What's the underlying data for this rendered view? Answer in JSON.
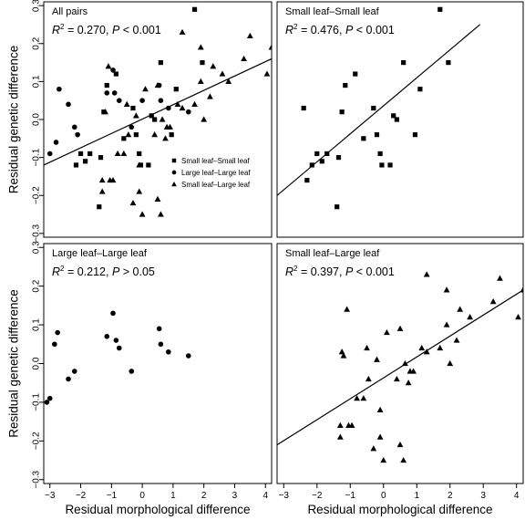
{
  "chart_data": [
    {
      "type": "scatter",
      "panel_title": "All pairs",
      "stats": {
        "r2_value": "= 0.270, ",
        "p_value": " < 0.001"
      },
      "xlim": [
        -3.2,
        4.2
      ],
      "ylim": [
        -0.31,
        0.31
      ],
      "x_ticks": [],
      "y_ticks": [
        "−0.3",
        "−0.2",
        "−0.1",
        "0.0",
        "0.1",
        "0.2",
        "0.3"
      ],
      "ylabel": "Residual genetic difference",
      "xlabel": "",
      "regression_line": {
        "x": [
          -3.2,
          4.2
        ],
        "y": [
          -0.12,
          0.16
        ]
      },
      "legend": {
        "position": "center",
        "entries": [
          {
            "label": "Small leaf–Small leaf",
            "marker": "square"
          },
          {
            "label": "Large leaf–Large leaf",
            "marker": "circle"
          },
          {
            "label": "Small leaf–Large leaf",
            "marker": "triangle"
          }
        ]
      },
      "series": [
        {
          "name": "Small leaf–Small leaf",
          "marker": "square",
          "x": [
            1.7,
            1.95,
            0.6,
            -0.85,
            -1.15,
            -0.3,
            -1.25,
            0.3,
            0.4,
            1.1,
            -0.2,
            0.95,
            -0.6,
            -1.7,
            -0.1,
            -1.35,
            -2.0,
            -2.15,
            -1.85,
            -1.4,
            -0.05,
            0.2
          ],
          "y": [
            0.29,
            0.15,
            0.15,
            0.12,
            0.09,
            0.03,
            0.02,
            0.01,
            0.0,
            0.08,
            -0.04,
            -0.04,
            -0.05,
            -0.09,
            -0.09,
            -0.1,
            -0.09,
            -0.12,
            -0.11,
            -0.23,
            -0.12,
            -0.12
          ]
        },
        {
          "name": "Large leaf–Large leaf",
          "marker": "circle",
          "x": [
            -2.7,
            -2.2,
            -2.1,
            -1.15,
            -0.95,
            -0.75,
            -0.35,
            0.55,
            0.6,
            0.85,
            1.5,
            -2.4,
            -2.8,
            -3.0,
            -0.9,
            0.0
          ],
          "y": [
            0.08,
            -0.02,
            -0.04,
            0.07,
            0.13,
            0.05,
            -0.02,
            0.09,
            0.05,
            0.03,
            0.02,
            0.04,
            -0.06,
            -0.09,
            0.07,
            0.05
          ]
        },
        {
          "name": "Small leaf–Large leaf",
          "marker": "triangle",
          "x": [
            1.3,
            4.2,
            3.5,
            2.6,
            3.3,
            4.05,
            1.9,
            2.2,
            1.7,
            1.3,
            0.8,
            -1.1,
            -0.5,
            -0.2,
            0.1,
            0.5,
            1.15,
            -0.8,
            -1.2,
            0.4,
            -0.1,
            -1.05,
            -0.95,
            0.75,
            0.65,
            0.9,
            2.0,
            -1.3,
            -1.3,
            -0.6,
            -0.45,
            0.5,
            0.6,
            -0.3,
            0.0,
            -0.1,
            1.9,
            2.3,
            2.8
          ],
          "y": [
            0.23,
            0.19,
            0.22,
            0.12,
            0.16,
            0.12,
            0.1,
            0.06,
            0.04,
            0.03,
            -0.02,
            0.14,
            0.04,
            0.01,
            0.08,
            0.09,
            0.04,
            -0.09,
            0.02,
            -0.04,
            -0.12,
            -0.16,
            -0.16,
            -0.05,
            0.0,
            -0.02,
            0.0,
            -0.19,
            -0.16,
            -0.09,
            -0.04,
            -0.21,
            -0.25,
            -0.22,
            -0.25,
            -0.19,
            0.19,
            0.14,
            0.1
          ]
        }
      ]
    },
    {
      "type": "scatter",
      "panel_title": "Small leaf–Small leaf",
      "stats": {
        "r2_value": "= 0.476, ",
        "p_value": " < 0.001"
      },
      "xlim": [
        -3.2,
        4.2
      ],
      "ylim": [
        -0.31,
        0.31
      ],
      "x_ticks": [],
      "y_ticks": [],
      "ylabel": "",
      "xlabel": "",
      "regression_line": {
        "x": [
          -3.2,
          2.9
        ],
        "y": [
          -0.2,
          0.25
        ]
      },
      "series": [
        {
          "name": "Small leaf–Small leaf",
          "marker": "square",
          "x": [
            1.7,
            1.95,
            0.6,
            -0.85,
            -1.15,
            -0.3,
            -1.25,
            0.3,
            0.4,
            1.1,
            -0.2,
            0.95,
            -0.6,
            -1.7,
            -0.1,
            -1.35,
            -2.0,
            -2.15,
            -1.85,
            -1.4,
            -0.05,
            0.2,
            -2.4,
            -2.3
          ],
          "y": [
            0.29,
            0.15,
            0.15,
            0.12,
            0.09,
            0.03,
            0.02,
            0.01,
            0.0,
            0.08,
            -0.04,
            -0.04,
            -0.05,
            -0.09,
            -0.09,
            -0.1,
            -0.09,
            -0.12,
            -0.11,
            -0.23,
            -0.12,
            -0.12,
            0.03,
            -0.16
          ]
        }
      ]
    },
    {
      "type": "scatter",
      "panel_title": "Large leaf–Large leaf",
      "stats": {
        "r2_value": "= 0.212, ",
        "p_value": " > 0.05"
      },
      "xlim": [
        -3.2,
        4.2
      ],
      "ylim": [
        -0.31,
        0.31
      ],
      "x_ticks": [
        "−3",
        "−2",
        "−1",
        "0",
        "1",
        "2",
        "3",
        "4"
      ],
      "y_ticks": [
        "−0.3",
        "−0.2",
        "−0.1",
        "0.0",
        "0.1",
        "0.2",
        "0.3"
      ],
      "ylabel": "Residual genetic difference",
      "xlabel": "Residual morphological difference",
      "regression_line": null,
      "series": [
        {
          "name": "Large leaf–Large leaf",
          "marker": "circle",
          "x": [
            -2.75,
            -2.85,
            -2.2,
            -2.4,
            -1.15,
            -0.95,
            -0.85,
            -0.75,
            -0.35,
            0.55,
            0.6,
            0.85,
            1.5,
            -3.0,
            -3.1
          ],
          "y": [
            0.08,
            0.05,
            -0.02,
            -0.04,
            0.07,
            0.13,
            0.06,
            0.04,
            -0.02,
            0.09,
            0.05,
            0.03,
            0.02,
            -0.09,
            -0.1
          ]
        }
      ]
    },
    {
      "type": "scatter",
      "panel_title": "Small leaf–Large leaf",
      "stats": {
        "r2_value": "= 0.397, ",
        "p_value": " < 0.001"
      },
      "xlim": [
        -3.2,
        4.2
      ],
      "ylim": [
        -0.31,
        0.31
      ],
      "x_ticks": [
        "−3",
        "−2",
        "−1",
        "0",
        "1",
        "2",
        "3",
        "4"
      ],
      "y_ticks": [],
      "ylabel": "",
      "xlabel": "Residual morphological difference",
      "regression_line": {
        "x": [
          -3.2,
          4.2
        ],
        "y": [
          -0.21,
          0.19
        ]
      },
      "series": [
        {
          "name": "Small leaf–Large leaf",
          "marker": "triangle",
          "x": [
            1.3,
            4.2,
            3.5,
            2.6,
            3.3,
            4.05,
            1.9,
            2.2,
            1.7,
            1.3,
            0.8,
            -1.1,
            -0.5,
            -0.2,
            0.1,
            0.5,
            1.15,
            -0.8,
            -1.2,
            0.4,
            -0.1,
            -1.05,
            -0.95,
            0.75,
            0.65,
            0.9,
            2.0,
            -1.3,
            -1.3,
            -0.6,
            -0.45,
            0.5,
            0.6,
            -0.3,
            0.0,
            -0.1,
            1.9,
            2.3,
            -1.25
          ],
          "y": [
            0.23,
            0.19,
            0.22,
            0.12,
            0.16,
            0.12,
            0.1,
            0.06,
            0.04,
            0.03,
            -0.02,
            0.14,
            0.04,
            0.01,
            0.08,
            0.09,
            0.04,
            -0.09,
            0.02,
            -0.04,
            -0.12,
            -0.16,
            -0.16,
            -0.05,
            0.0,
            -0.02,
            0.0,
            -0.19,
            -0.16,
            -0.09,
            -0.04,
            -0.21,
            -0.25,
            -0.22,
            -0.25,
            -0.19,
            0.19,
            0.14,
            0.03
          ]
        }
      ]
    }
  ]
}
